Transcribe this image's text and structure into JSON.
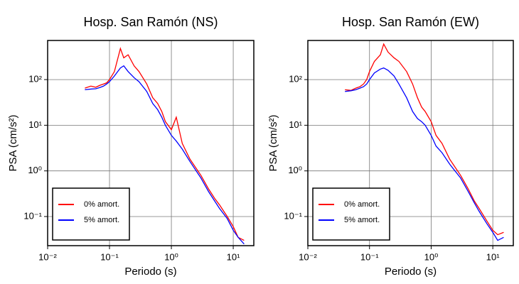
{
  "chart_data": [
    {
      "type": "line",
      "title": "Hosp. San Ramón (NS)",
      "xlabel": "Periodo (s)",
      "ylabel": "PSA (cm/s²)",
      "xscale": "log",
      "yscale": "log",
      "grid": true,
      "legend": "lower left",
      "xlim": [
        0.01,
        21.5
      ],
      "ylim": [
        0.023,
        720
      ],
      "xticks": [
        {
          "value": 0.01,
          "label": "10⁻²"
        },
        {
          "value": 0.1,
          "label": "10⁻¹"
        },
        {
          "value": 1,
          "label": "10⁰"
        },
        {
          "value": 10,
          "label": "10¹"
        }
      ],
      "yticks": [
        {
          "value": 0.1,
          "label": "10⁻¹"
        },
        {
          "value": 1,
          "label": "10⁰"
        },
        {
          "value": 10,
          "label": "10¹"
        },
        {
          "value": 100,
          "label": "10²"
        }
      ],
      "x": [
        0.04,
        0.05,
        0.06,
        0.07,
        0.08,
        0.09,
        0.1,
        0.12,
        0.15,
        0.17,
        0.2,
        0.25,
        0.3,
        0.4,
        0.5,
        0.6,
        0.7,
        0.8,
        1.0,
        1.2,
        1.5,
        2,
        3,
        4,
        5,
        6,
        8,
        10,
        12,
        15
      ],
      "series": [
        {
          "name": "0% amort.",
          "color": "#ff0000",
          "values": [
            65,
            72,
            68,
            75,
            80,
            85,
            100,
            150,
            480,
            300,
            350,
            200,
            150,
            80,
            40,
            30,
            20,
            12,
            8,
            15,
            4,
            1.8,
            0.8,
            0.4,
            0.25,
            0.18,
            0.1,
            0.06,
            0.035,
            0.03
          ]
        },
        {
          "name": "5% amort.",
          "color": "#0000ff",
          "values": [
            60,
            62,
            63,
            67,
            72,
            80,
            90,
            120,
            180,
            200,
            150,
            110,
            90,
            55,
            30,
            22,
            15,
            10,
            6,
            4.5,
            3,
            1.6,
            0.7,
            0.35,
            0.22,
            0.15,
            0.09,
            0.05,
            0.035,
            0.025
          ]
        }
      ]
    },
    {
      "type": "line",
      "title": "Hosp. San Ramón (EW)",
      "xlabel": "Periodo (s)",
      "ylabel": "PSA (cm/s²)",
      "xscale": "log",
      "yscale": "log",
      "grid": true,
      "legend": "lower left",
      "xlim": [
        0.01,
        21.5
      ],
      "ylim": [
        0.023,
        720
      ],
      "xticks": [
        {
          "value": 0.01,
          "label": "10⁻²"
        },
        {
          "value": 0.1,
          "label": "10⁻¹"
        },
        {
          "value": 1,
          "label": "10⁰"
        },
        {
          "value": 10,
          "label": "10¹"
        }
      ],
      "yticks": [
        {
          "value": 0.1,
          "label": "10⁻¹"
        },
        {
          "value": 1,
          "label": "10⁰"
        },
        {
          "value": 10,
          "label": "10¹"
        },
        {
          "value": 100,
          "label": "10²"
        }
      ],
      "x": [
        0.04,
        0.05,
        0.06,
        0.07,
        0.08,
        0.09,
        0.1,
        0.12,
        0.15,
        0.17,
        0.2,
        0.25,
        0.3,
        0.4,
        0.5,
        0.6,
        0.7,
        0.8,
        1.0,
        1.2,
        1.5,
        2,
        3,
        4,
        5,
        6,
        8,
        10,
        12,
        15
      ],
      "series": [
        {
          "name": "0% amort.",
          "color": "#ff0000",
          "values": [
            60,
            58,
            65,
            70,
            80,
            100,
            150,
            250,
            350,
            600,
            400,
            300,
            250,
            150,
            80,
            40,
            25,
            20,
            12,
            6,
            4,
            1.8,
            0.8,
            0.4,
            0.22,
            0.15,
            0.08,
            0.05,
            0.04,
            0.045
          ]
        },
        {
          "name": "5% amort.",
          "color": "#0000ff",
          "values": [
            55,
            57,
            60,
            65,
            70,
            80,
            100,
            140,
            170,
            180,
            160,
            120,
            80,
            40,
            20,
            14,
            12,
            10,
            6,
            3.5,
            2.5,
            1.4,
            0.7,
            0.35,
            0.2,
            0.13,
            0.07,
            0.045,
            0.03,
            0.035
          ]
        }
      ]
    }
  ]
}
